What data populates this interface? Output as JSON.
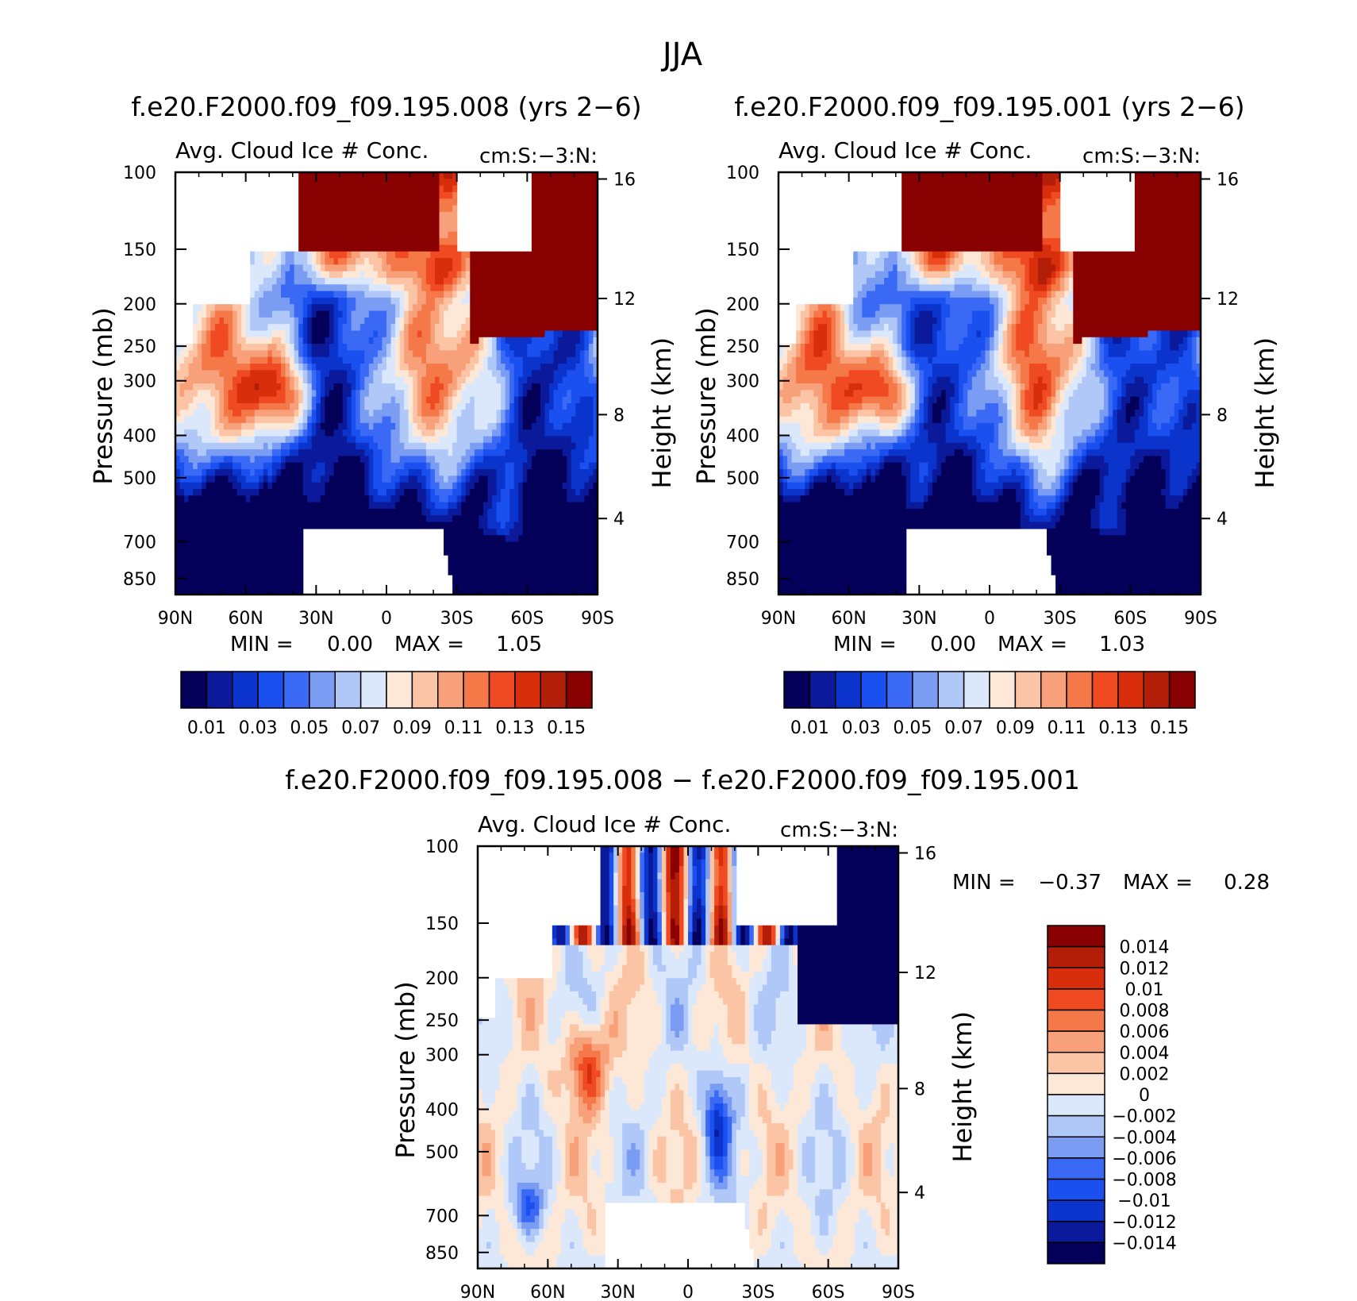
{
  "figure": {
    "title": "JJA"
  },
  "chart_data": [
    {
      "type": "heatmap",
      "title": "f.e20.F2000.f09_f09.195.008 (yrs 2-6)",
      "subtitle_left": "Avg. Cloud Ice # Conc.",
      "subtitle_right": "cm:S:-3:N:",
      "ylabel": "Pressure (mb)",
      "ylabel_right": "Height (km)",
      "x_ticks": [
        "90N",
        "60N",
        "30N",
        "0",
        "30S",
        "60S",
        "90S"
      ],
      "y_ticks": [
        "100",
        "150",
        "200",
        "250",
        "300",
        "400",
        "500",
        "700",
        "850"
      ],
      "y_ticks_right": [
        "16",
        "12",
        "8",
        "4"
      ],
      "stats": {
        "min_label": "MIN =",
        "min": "0.00",
        "max_label": "MAX =",
        "max": "1.05"
      },
      "colorbar_labels": [
        "0.01",
        "0.03",
        "0.05",
        "0.07",
        "0.09",
        "0.11",
        "0.13",
        "0.15"
      ]
    },
    {
      "type": "heatmap",
      "title": "f.e20.F2000.f09_f09.195.001 (yrs 2-6)",
      "subtitle_left": "Avg. Cloud Ice # Conc.",
      "subtitle_right": "cm:S:-3:N:",
      "ylabel": "Pressure (mb)",
      "ylabel_right": "Height (km)",
      "x_ticks": [
        "90N",
        "60N",
        "30N",
        "0",
        "30S",
        "60S",
        "90S"
      ],
      "y_ticks": [
        "100",
        "150",
        "200",
        "250",
        "300",
        "400",
        "500",
        "700",
        "850"
      ],
      "y_ticks_right": [
        "16",
        "12",
        "8",
        "4"
      ],
      "stats": {
        "min_label": "MIN =",
        "min": "0.00",
        "max_label": "MAX =",
        "max": "1.03"
      },
      "colorbar_labels": [
        "0.01",
        "0.03",
        "0.05",
        "0.07",
        "0.09",
        "0.11",
        "0.13",
        "0.15"
      ]
    },
    {
      "type": "heatmap",
      "title": "f.e20.F2000.f09_f09.195.008 - f.e20.F2000.f09_f09.195.001",
      "subtitle_left": "Avg. Cloud Ice # Conc.",
      "subtitle_right": "cm:S:-3:N:",
      "ylabel": "Pressure (mb)",
      "ylabel_right": "Height (km)",
      "x_ticks": [
        "90N",
        "60N",
        "30N",
        "0",
        "30S",
        "60S",
        "90S"
      ],
      "y_ticks": [
        "100",
        "150",
        "200",
        "250",
        "300",
        "400",
        "500",
        "700",
        "850"
      ],
      "y_ticks_right": [
        "16",
        "12",
        "8",
        "4"
      ],
      "stats": {
        "min_label": "MIN =",
        "min": "-0.37",
        "max_label": "MAX =",
        "max": "0.28"
      },
      "colorbar_labels": [
        "0.014",
        "0.012",
        "0.01",
        "0.008",
        "0.006",
        "0.004",
        "0.002",
        "0",
        "-0.002",
        "-0.004",
        "-0.006",
        "-0.008",
        "-0.01",
        "-0.012",
        "-0.014"
      ]
    }
  ],
  "palettes": {
    "absolute": [
      "#04005a",
      "#0a1a9a",
      "#0b34cc",
      "#1a50f0",
      "#3a6af5",
      "#7a9cf2",
      "#b0c8f8",
      "#dbe8fb",
      "#fde8d8",
      "#fbc4a4",
      "#f8a07a",
      "#f47848",
      "#f04a22",
      "#d82e0c",
      "#b21e08",
      "#880000"
    ],
    "difference": [
      "#880000",
      "#b21e08",
      "#d82e0c",
      "#f04a22",
      "#f47848",
      "#f8a07a",
      "#fbc4a4",
      "#fde8d8",
      "#dbe8fb",
      "#b0c8f8",
      "#7a9cf2",
      "#3a6af5",
      "#1a50f0",
      "#0b34cc",
      "#0a1a9a",
      "#04005a"
    ]
  }
}
